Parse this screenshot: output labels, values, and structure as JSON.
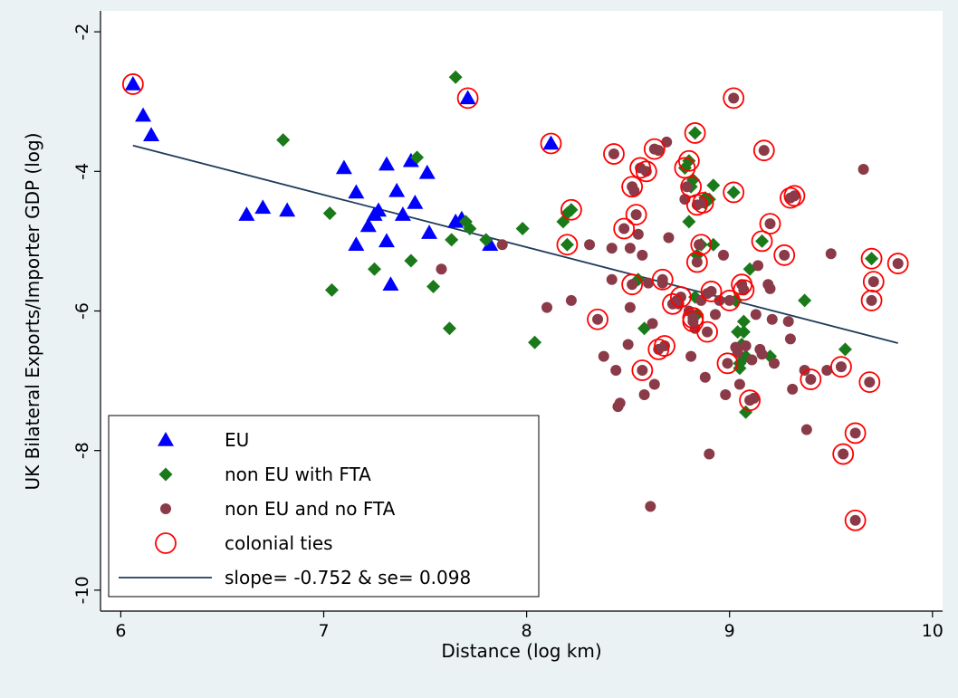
{
  "chart_data": {
    "type": "scatter",
    "xlabel": "Distance (log km)",
    "ylabel": "UK Bilateral Exports/Importer GDP (log)",
    "xlim": [
      5.9,
      10.05
    ],
    "ylim": [
      -10.3,
      -1.7
    ],
    "xticks": [
      6,
      7,
      8,
      9,
      10
    ],
    "yticks": [
      -2,
      -4,
      -6,
      -8,
      -10
    ],
    "grid": false,
    "legend_position": "bottom-left",
    "colors": {
      "eu": "#0000ff",
      "fta": "#1a7a1a",
      "nofta": "#8b3a48",
      "colonial": "#ff0000",
      "fit": "#1f3b5b",
      "background": "#eaf2f3"
    },
    "series": [
      {
        "name": "EU",
        "marker": "triangle",
        "points": [
          [
            6.06,
            -2.75
          ],
          [
            6.11,
            -3.2
          ],
          [
            6.15,
            -3.48
          ],
          [
            6.62,
            -4.62
          ],
          [
            6.7,
            -4.52
          ],
          [
            6.82,
            -4.56
          ],
          [
            7.1,
            -3.95
          ],
          [
            7.16,
            -4.3
          ],
          [
            7.16,
            -5.05
          ],
          [
            7.22,
            -4.78
          ],
          [
            7.25,
            -4.62
          ],
          [
            7.27,
            -4.56
          ],
          [
            7.31,
            -3.9
          ],
          [
            7.31,
            -5.0
          ],
          [
            7.33,
            -5.62
          ],
          [
            7.36,
            -4.28
          ],
          [
            7.39,
            -4.62
          ],
          [
            7.43,
            -3.85
          ],
          [
            7.45,
            -4.45
          ],
          [
            7.51,
            -4.02
          ],
          [
            7.52,
            -4.88
          ],
          [
            7.65,
            -4.72
          ],
          [
            7.68,
            -4.68
          ],
          [
            7.71,
            -2.95
          ],
          [
            7.82,
            -5.05
          ],
          [
            8.12,
            -3.6
          ]
        ]
      },
      {
        "name": "non EU with FTA",
        "marker": "diamond",
        "points": [
          [
            6.8,
            -3.55
          ],
          [
            7.03,
            -4.6
          ],
          [
            7.04,
            -5.7
          ],
          [
            7.25,
            -5.4
          ],
          [
            7.43,
            -5.28
          ],
          [
            7.46,
            -3.8
          ],
          [
            7.54,
            -5.65
          ],
          [
            7.62,
            -6.25
          ],
          [
            7.63,
            -4.98
          ],
          [
            7.65,
            -2.65
          ],
          [
            7.7,
            -4.72
          ],
          [
            7.72,
            -4.82
          ],
          [
            7.8,
            -4.98
          ],
          [
            7.98,
            -4.82
          ],
          [
            8.04,
            -6.45
          ],
          [
            8.18,
            -4.72
          ],
          [
            8.2,
            -4.6
          ],
          [
            8.2,
            -5.05
          ],
          [
            8.22,
            -4.55
          ],
          [
            8.55,
            -5.55
          ],
          [
            8.58,
            -6.25
          ],
          [
            8.78,
            -3.95
          ],
          [
            8.8,
            -3.85
          ],
          [
            8.8,
            -4.72
          ],
          [
            8.81,
            -4.22
          ],
          [
            8.82,
            -4.12
          ],
          [
            8.83,
            -3.45
          ],
          [
            8.83,
            -5.8
          ],
          [
            8.84,
            -6.05
          ],
          [
            8.84,
            -5.2
          ],
          [
            8.86,
            -5.05
          ],
          [
            8.88,
            -4.45
          ],
          [
            8.88,
            -4.38
          ],
          [
            8.9,
            -4.4
          ],
          [
            8.92,
            -5.05
          ],
          [
            8.92,
            -4.2
          ],
          [
            9.02,
            -4.3
          ],
          [
            9.03,
            -5.85
          ],
          [
            9.04,
            -6.3
          ],
          [
            9.05,
            -6.82
          ],
          [
            9.05,
            -6.75
          ],
          [
            9.06,
            -6.48
          ],
          [
            9.07,
            -6.3
          ],
          [
            9.07,
            -6.15
          ],
          [
            9.08,
            -6.65
          ],
          [
            9.08,
            -7.45
          ],
          [
            9.1,
            -5.4
          ],
          [
            9.16,
            -5.0
          ],
          [
            9.2,
            -6.65
          ],
          [
            9.37,
            -5.85
          ],
          [
            9.57,
            -6.55
          ],
          [
            9.7,
            -5.25
          ]
        ]
      },
      {
        "name": "non EU and no FTA",
        "marker": "circle",
        "points": [
          [
            7.58,
            -5.4
          ],
          [
            7.88,
            -5.05
          ],
          [
            8.1,
            -5.95
          ],
          [
            8.22,
            -5.85
          ],
          [
            8.31,
            -5.05
          ],
          [
            8.35,
            -6.12
          ],
          [
            8.38,
            -6.65
          ],
          [
            8.42,
            -5.55
          ],
          [
            8.42,
            -5.1
          ],
          [
            8.43,
            -3.75
          ],
          [
            8.44,
            -6.85
          ],
          [
            8.45,
            -7.37
          ],
          [
            8.46,
            -7.32
          ],
          [
            8.48,
            -4.82
          ],
          [
            8.5,
            -6.48
          ],
          [
            8.51,
            -5.95
          ],
          [
            8.51,
            -5.1
          ],
          [
            8.52,
            -5.62
          ],
          [
            8.52,
            -4.22
          ],
          [
            8.53,
            -4.28
          ],
          [
            8.54,
            -4.62
          ],
          [
            8.55,
            -4.9
          ],
          [
            8.56,
            -3.95
          ],
          [
            8.57,
            -5.2
          ],
          [
            8.57,
            -6.85
          ],
          [
            8.58,
            -7.2
          ],
          [
            8.59,
            -4.0
          ],
          [
            8.6,
            -5.6
          ],
          [
            8.61,
            -8.8
          ],
          [
            8.62,
            -6.18
          ],
          [
            8.63,
            -7.05
          ],
          [
            8.63,
            -3.68
          ],
          [
            8.65,
            -6.55
          ],
          [
            8.65,
            -3.7
          ],
          [
            8.67,
            -5.55
          ],
          [
            8.67,
            -5.6
          ],
          [
            8.68,
            -6.5
          ],
          [
            8.69,
            -3.58
          ],
          [
            8.7,
            -4.95
          ],
          [
            8.72,
            -5.9
          ],
          [
            8.74,
            -5.85
          ],
          [
            8.75,
            -5.9
          ],
          [
            8.76,
            -5.8
          ],
          [
            8.78,
            -4.4
          ],
          [
            8.79,
            -4.22
          ],
          [
            8.8,
            -6.0
          ],
          [
            8.81,
            -6.65
          ],
          [
            8.82,
            -6.1
          ],
          [
            8.82,
            -6.15
          ],
          [
            8.83,
            -6.25
          ],
          [
            8.84,
            -4.48
          ],
          [
            8.84,
            -5.3
          ],
          [
            8.85,
            -5.05
          ],
          [
            8.86,
            -5.85
          ],
          [
            8.87,
            -4.45
          ],
          [
            8.88,
            -6.95
          ],
          [
            8.89,
            -6.3
          ],
          [
            8.89,
            -5.75
          ],
          [
            8.9,
            -8.05
          ],
          [
            8.91,
            -5.72
          ],
          [
            8.93,
            -6.05
          ],
          [
            8.95,
            -5.85
          ],
          [
            8.97,
            -5.2
          ],
          [
            8.98,
            -7.2
          ],
          [
            8.99,
            -6.75
          ],
          [
            9.0,
            -5.85
          ],
          [
            9.02,
            -2.95
          ],
          [
            9.03,
            -6.52
          ],
          [
            9.04,
            -6.6
          ],
          [
            9.05,
            -7.05
          ],
          [
            9.06,
            -5.62
          ],
          [
            9.07,
            -5.7
          ],
          [
            9.08,
            -6.5
          ],
          [
            9.1,
            -7.28
          ],
          [
            9.11,
            -6.7
          ],
          [
            9.12,
            -7.25
          ],
          [
            9.13,
            -6.05
          ],
          [
            9.14,
            -5.35
          ],
          [
            9.15,
            -6.55
          ],
          [
            9.16,
            -6.62
          ],
          [
            9.17,
            -3.7
          ],
          [
            9.19,
            -5.62
          ],
          [
            9.2,
            -4.75
          ],
          [
            9.2,
            -5.68
          ],
          [
            9.21,
            -6.12
          ],
          [
            9.22,
            -6.75
          ],
          [
            9.27,
            -5.2
          ],
          [
            9.29,
            -6.15
          ],
          [
            9.3,
            -6.4
          ],
          [
            9.3,
            -4.38
          ],
          [
            9.31,
            -7.12
          ],
          [
            9.32,
            -4.35
          ],
          [
            9.37,
            -6.85
          ],
          [
            9.38,
            -7.7
          ],
          [
            9.4,
            -6.98
          ],
          [
            9.48,
            -6.85
          ],
          [
            9.5,
            -5.18
          ],
          [
            9.55,
            -6.8
          ],
          [
            9.56,
            -8.05
          ],
          [
            9.62,
            -9.0
          ],
          [
            9.62,
            -7.75
          ],
          [
            9.66,
            -3.97
          ],
          [
            9.69,
            -7.02
          ],
          [
            9.7,
            -5.85
          ],
          [
            9.71,
            -5.58
          ],
          [
            9.83,
            -5.32
          ]
        ]
      },
      {
        "name": "colonial ties",
        "marker": "hollow-circle",
        "points": [
          [
            6.06,
            -2.75
          ],
          [
            7.71,
            -2.95
          ],
          [
            8.12,
            -3.6
          ],
          [
            8.2,
            -5.05
          ],
          [
            8.22,
            -4.55
          ],
          [
            8.35,
            -6.12
          ],
          [
            8.43,
            -3.75
          ],
          [
            8.48,
            -4.82
          ],
          [
            8.52,
            -5.62
          ],
          [
            8.52,
            -4.22
          ],
          [
            8.54,
            -4.62
          ],
          [
            8.56,
            -3.95
          ],
          [
            8.57,
            -6.85
          ],
          [
            8.59,
            -4.0
          ],
          [
            8.63,
            -3.68
          ],
          [
            8.65,
            -6.55
          ],
          [
            8.67,
            -5.55
          ],
          [
            8.68,
            -6.5
          ],
          [
            8.72,
            -5.9
          ],
          [
            8.76,
            -5.8
          ],
          [
            8.78,
            -3.95
          ],
          [
            8.8,
            -3.85
          ],
          [
            8.81,
            -4.22
          ],
          [
            8.82,
            -6.1
          ],
          [
            8.82,
            -6.15
          ],
          [
            8.83,
            -3.45
          ],
          [
            8.84,
            -4.48
          ],
          [
            8.84,
            -5.3
          ],
          [
            8.86,
            -5.05
          ],
          [
            8.87,
            -4.45
          ],
          [
            8.89,
            -6.3
          ],
          [
            8.91,
            -5.72
          ],
          [
            8.99,
            -6.75
          ],
          [
            9.0,
            -5.85
          ],
          [
            9.02,
            -2.95
          ],
          [
            9.02,
            -4.3
          ],
          [
            9.06,
            -5.62
          ],
          [
            9.07,
            -5.7
          ],
          [
            9.1,
            -7.28
          ],
          [
            9.16,
            -5.0
          ],
          [
            9.17,
            -3.7
          ],
          [
            9.2,
            -4.75
          ],
          [
            9.27,
            -5.2
          ],
          [
            9.3,
            -4.38
          ],
          [
            9.32,
            -4.35
          ],
          [
            9.4,
            -6.98
          ],
          [
            9.55,
            -6.8
          ],
          [
            9.56,
            -8.05
          ],
          [
            9.62,
            -9.0
          ],
          [
            9.62,
            -7.75
          ],
          [
            9.69,
            -7.02
          ],
          [
            9.7,
            -5.85
          ],
          [
            9.71,
            -5.58
          ],
          [
            9.7,
            -5.25
          ],
          [
            9.83,
            -5.32
          ]
        ]
      }
    ],
    "fit_line": {
      "name": "slope= -0.752 & se= 0.098",
      "x": [
        6.06,
        9.83
      ],
      "y": [
        -3.63,
        -6.46
      ]
    },
    "legend": [
      {
        "label": "EU",
        "marker": "triangle"
      },
      {
        "label": "non EU with FTA",
        "marker": "diamond"
      },
      {
        "label": "non EU and no FTA",
        "marker": "circle"
      },
      {
        "label": "colonial ties",
        "marker": "hollow-circle"
      },
      {
        "label": "slope= -0.752 & se= 0.098",
        "marker": "line"
      }
    ]
  }
}
